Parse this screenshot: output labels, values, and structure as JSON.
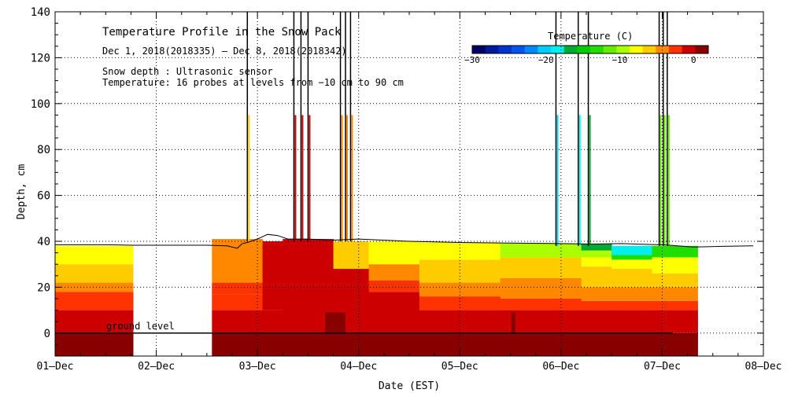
{
  "chart_data": {
    "type": "heatmap",
    "title": "Temperature Profile in the Snow Pack",
    "subtitle": "Dec  1, 2018(2018335) – Dec  8, 2018(2018342)",
    "notes": [
      "Snow depth : Ultrasonic sensor",
      "Temperature: 16 probes at levels from −10 cm to 90 cm"
    ],
    "ground_label": "ground level",
    "xlabel": "Date (EST)",
    "ylabel": "Depth, cm",
    "x_ticks": [
      "01–Dec",
      "02–Dec",
      "03–Dec",
      "04–Dec",
      "05–Dec",
      "06–Dec",
      "07–Dec",
      "08–Dec"
    ],
    "xlim": [
      0,
      7
    ],
    "ylim": [
      -10,
      140
    ],
    "y_ticks": [
      0,
      20,
      40,
      60,
      80,
      100,
      120,
      140
    ],
    "grid": true,
    "colorbar": {
      "title": "Temperature (C)",
      "min": -30,
      "max": 2,
      "tick_values": [
        -30,
        -20,
        -10,
        0
      ],
      "tick_labels": [
        "−30",
        "−20",
        "−10",
        "0"
      ],
      "colors": [
        "#000066",
        "#001a99",
        "#0033cc",
        "#0055ee",
        "#0088ff",
        "#00ccff",
        "#00eeee",
        "#00aa33",
        "#00cc00",
        "#22dd00",
        "#66ee00",
        "#aaff00",
        "#ffff00",
        "#ffcc00",
        "#ff8800",
        "#ff3300",
        "#cc0000",
        "#880000"
      ]
    },
    "snow_depth": {
      "days": [
        0,
        0.5,
        0.77,
        0.8,
        1,
        1.5,
        1.7,
        1.8,
        1.85,
        1.9,
        2.0,
        2.05,
        2.1,
        2.2,
        2.3,
        2.5,
        2.75,
        3.0,
        3.5,
        4.0,
        4.5,
        5.0,
        5.3,
        5.6,
        5.8,
        6.0,
        6.1,
        6.3,
        6.6,
        6.9
      ],
      "values": [
        38.5,
        38.5,
        38.3,
        38.3,
        38.3,
        38.3,
        38,
        37,
        39,
        39.5,
        41,
        42,
        43,
        42.5,
        41,
        41,
        40.5,
        41,
        40,
        39.5,
        39.2,
        39,
        38.8,
        39,
        38.7,
        38.5,
        38.2,
        37.5,
        37.8,
        38
      ]
    },
    "temperature_zones": [
      {
        "day_start": 0,
        "day_end": 0.77,
        "layers": [
          [
            -10,
            0,
            0.5
          ],
          [
            0,
            10,
            -0.5
          ],
          [
            10,
            18,
            -3
          ],
          [
            18,
            22,
            -4.5
          ],
          [
            22,
            30,
            -6
          ],
          [
            30,
            38,
            -8
          ]
        ]
      },
      {
        "day_start": 1.55,
        "day_end": 2.05,
        "layers": [
          [
            -10,
            0,
            0.5
          ],
          [
            0,
            10,
            -0.5
          ],
          [
            10,
            17,
            -2
          ],
          [
            17,
            22,
            -3
          ],
          [
            22,
            41,
            -4
          ]
        ]
      },
      {
        "day_start": 2.05,
        "day_end": 2.25,
        "layers": [
          [
            -10,
            0,
            0.5
          ],
          [
            0,
            10,
            -0.5
          ],
          [
            10,
            40,
            -1.5
          ]
        ]
      },
      {
        "day_start": 2.25,
        "day_end": 2.75,
        "layers": [
          [
            -10,
            0,
            0.5
          ],
          [
            0,
            41,
            -0.5
          ]
        ]
      },
      {
        "day_start": 2.75,
        "day_end": 3.1,
        "layers": [
          [
            -10,
            0,
            0.5
          ],
          [
            0,
            28,
            -0.5
          ],
          [
            28,
            40,
            -6
          ]
        ]
      },
      {
        "day_start": 3.1,
        "day_end": 3.6,
        "layers": [
          [
            -10,
            0,
            0.5
          ],
          [
            0,
            18,
            -0.5
          ],
          [
            18,
            23,
            -2
          ],
          [
            23,
            30,
            -4.5
          ],
          [
            30,
            40,
            -7
          ]
        ]
      },
      {
        "day_start": 3.6,
        "day_end": 4.4,
        "layers": [
          [
            -10,
            0,
            0.5
          ],
          [
            0,
            10,
            -0.5
          ],
          [
            10,
            16,
            -2
          ],
          [
            16,
            22,
            -4.5
          ],
          [
            22,
            32,
            -6
          ],
          [
            32,
            39.5,
            -8
          ]
        ]
      },
      {
        "day_start": 4.4,
        "day_end": 5.2,
        "layers": [
          [
            -10,
            0,
            0.5
          ],
          [
            0,
            10,
            -0.5
          ],
          [
            10,
            15,
            -3
          ],
          [
            15,
            24,
            -4.5
          ],
          [
            24,
            33,
            -6
          ],
          [
            33,
            39,
            -10
          ]
        ]
      },
      {
        "day_start": 5.2,
        "day_end": 5.5,
        "layers": [
          [
            -10,
            0,
            0.5
          ],
          [
            0,
            10,
            -0.5
          ],
          [
            10,
            14,
            -3
          ],
          [
            14,
            20,
            -4.5
          ],
          [
            20,
            29,
            -6
          ],
          [
            29,
            33,
            -8
          ],
          [
            33,
            36,
            -10
          ],
          [
            36,
            39,
            -17
          ]
        ]
      },
      {
        "day_start": 5.5,
        "day_end": 5.9,
        "layers": [
          [
            -10,
            0,
            0.5
          ],
          [
            0,
            10,
            -0.5
          ],
          [
            10,
            14,
            -3
          ],
          [
            14,
            20,
            -4.5
          ],
          [
            20,
            28,
            -6
          ],
          [
            28,
            32,
            -8
          ],
          [
            32,
            34,
            -14
          ],
          [
            34,
            38,
            -19
          ]
        ]
      },
      {
        "day_start": 5.9,
        "day_end": 6.35,
        "layers": [
          [
            -10,
            0,
            0.5
          ],
          [
            0,
            10,
            -0.5
          ],
          [
            10,
            14,
            -3
          ],
          [
            14,
            20,
            -4.5
          ],
          [
            20,
            26,
            -6
          ],
          [
            26,
            33,
            -8
          ],
          [
            33,
            38,
            -13
          ]
        ]
      }
    ],
    "warm_spots": [
      {
        "day_start": 2.67,
        "day_end": 2.87,
        "depth_bottom": 0,
        "depth_top": 9,
        "value": 2
      },
      {
        "day_start": 4.51,
        "day_end": 4.55,
        "depth_bottom": 0,
        "depth_top": 9,
        "value": 2
      }
    ],
    "spikes": [
      {
        "day": 1.9,
        "bottom": 40,
        "top": 140,
        "value": -6
      },
      {
        "day": 2.36,
        "bottom": 40,
        "top": 140,
        "value": -0.5
      },
      {
        "day": 2.43,
        "bottom": 40,
        "top": 140,
        "value": -0.5
      },
      {
        "day": 2.5,
        "bottom": 40,
        "top": 140,
        "value": -0.5
      },
      {
        "day": 2.82,
        "bottom": 40,
        "top": 140,
        "value": -4
      },
      {
        "day": 2.87,
        "bottom": 40,
        "top": 140,
        "value": -4
      },
      {
        "day": 2.92,
        "bottom": 40,
        "top": 140,
        "value": -4
      },
      {
        "day": 4.95,
        "bottom": 38,
        "top": 140,
        "value": -20
      },
      {
        "day": 5.17,
        "bottom": 38,
        "top": 140,
        "value": -19
      },
      {
        "day": 5.27,
        "bottom": 38,
        "top": 140,
        "value": -17
      },
      {
        "day": 5.97,
        "bottom": 38,
        "top": 140,
        "value": -11
      },
      {
        "day": 6.01,
        "bottom": 38,
        "top": 140,
        "value": -11
      },
      {
        "day": 6.05,
        "bottom": 38,
        "top": 140,
        "value": -11
      }
    ]
  }
}
